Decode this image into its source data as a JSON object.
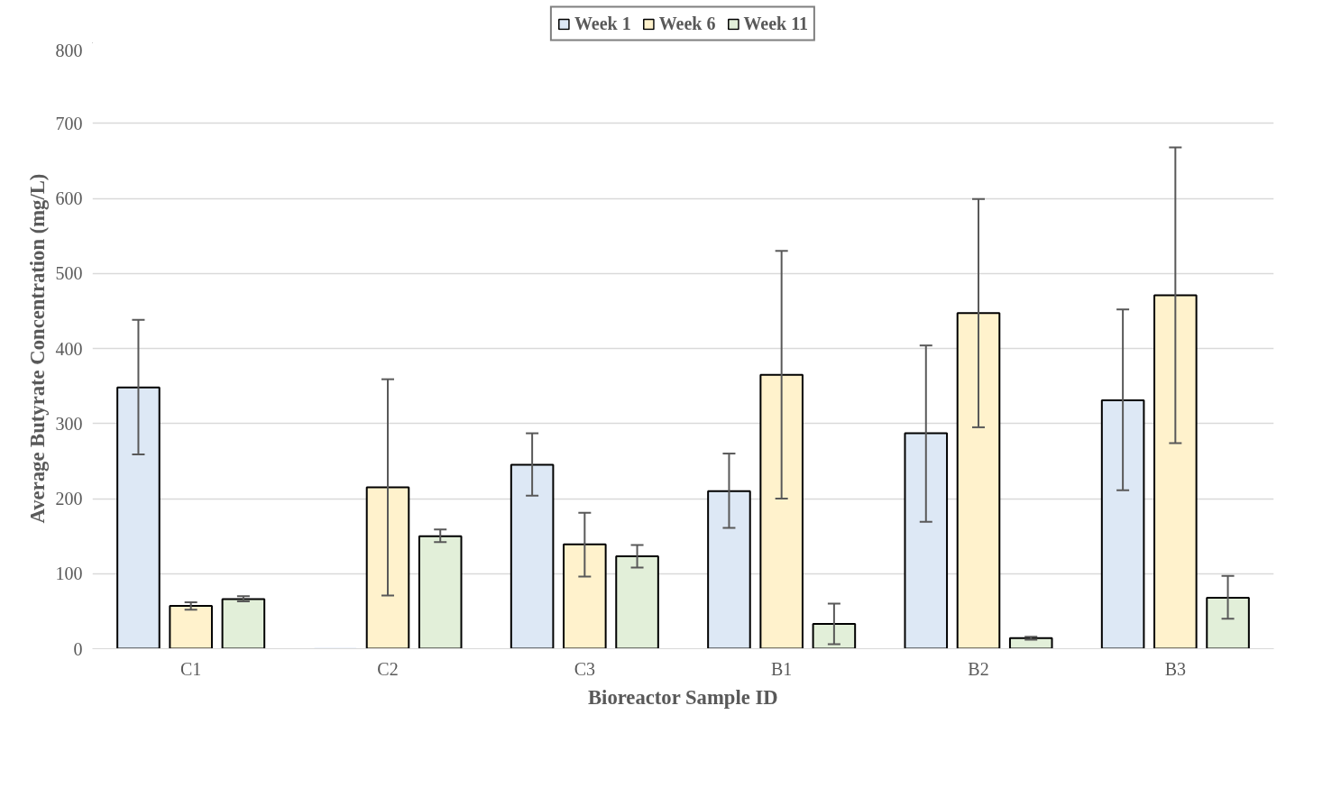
{
  "chart_data": {
    "type": "bar",
    "xlabel": "Bioreactor Sample ID",
    "ylabel": "Average Butyrate Concentration (mg/L)",
    "categories": [
      "C1",
      "C2",
      "C3",
      "B1",
      "B2",
      "B3"
    ],
    "series": [
      {
        "name": "Week 1",
        "color": "#dde8f5",
        "values": [
          348,
          0,
          245,
          210,
          287,
          331
        ],
        "errors": [
          [
            259,
            438
          ],
          null,
          [
            204,
            287
          ],
          [
            161,
            260
          ],
          [
            169,
            404
          ],
          [
            211,
            452
          ]
        ]
      },
      {
        "name": "Week 6",
        "color": "#fff2cc",
        "values": [
          57,
          215,
          139,
          365,
          447,
          471
        ],
        "errors": [
          [
            52,
            62
          ],
          [
            71,
            359
          ],
          [
            96,
            181
          ],
          [
            200,
            530
          ],
          [
            295,
            599
          ],
          [
            274,
            668
          ]
        ]
      },
      {
        "name": "Week 11",
        "color": "#e2efd9",
        "values": [
          66,
          150,
          123,
          33,
          14,
          68
        ],
        "errors": [
          [
            63,
            70
          ],
          [
            142,
            159
          ],
          [
            108,
            138
          ],
          [
            6,
            60
          ],
          [
            12,
            16
          ],
          [
            40,
            97
          ]
        ]
      }
    ],
    "ylim": [
      0,
      800
    ],
    "yticks": [
      0,
      100,
      200,
      300,
      400,
      500,
      600,
      700,
      800
    ],
    "grid": "y",
    "legend": "top"
  }
}
